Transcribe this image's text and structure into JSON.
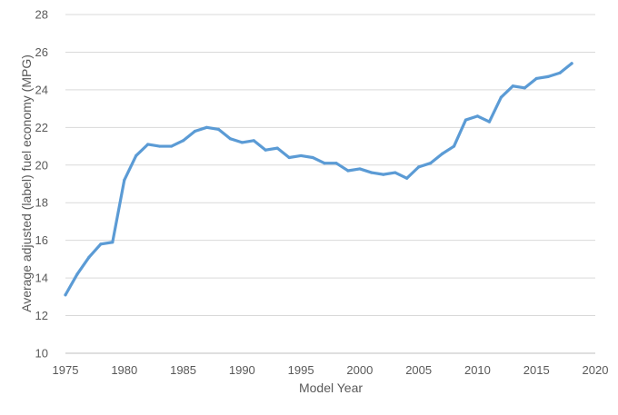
{
  "chart_data": {
    "type": "line",
    "xlabel": "Model Year",
    "ylabel": "Average adjusted (label) fuel economy (MPG)",
    "xlim": [
      1975,
      2020
    ],
    "ylim": [
      10,
      28
    ],
    "xticks": [
      1975,
      1980,
      1985,
      1990,
      1995,
      2000,
      2005,
      2010,
      2015,
      2020
    ],
    "yticks": [
      10,
      12,
      14,
      16,
      18,
      20,
      22,
      24,
      26,
      28
    ],
    "grid": "horizontal",
    "line_color": "#5b9bd5",
    "series": [
      {
        "x": [
          1975,
          1976,
          1977,
          1978,
          1979,
          1980,
          1981,
          1982,
          1983,
          1984,
          1985,
          1986,
          1987,
          1988,
          1989,
          1990,
          1991,
          1992,
          1993,
          1994,
          1995,
          1996,
          1997,
          1998,
          1999,
          2000,
          2001,
          2002,
          2003,
          2004,
          2005,
          2006,
          2007,
          2008,
          2009,
          2010,
          2011,
          2012,
          2013,
          2014,
          2015,
          2016,
          2017,
          2018
        ],
        "values": [
          13.1,
          14.2,
          15.1,
          15.8,
          15.9,
          19.2,
          20.5,
          21.1,
          21.0,
          21.0,
          21.3,
          21.8,
          22.0,
          21.9,
          21.4,
          21.2,
          21.3,
          20.8,
          20.9,
          20.4,
          20.5,
          20.4,
          20.1,
          20.1,
          19.7,
          19.8,
          19.6,
          19.5,
          19.6,
          19.3,
          19.9,
          20.1,
          20.6,
          21.0,
          22.4,
          22.6,
          22.3,
          23.6,
          24.2,
          24.1,
          24.6,
          24.7,
          24.9,
          25.4
        ]
      }
    ]
  }
}
